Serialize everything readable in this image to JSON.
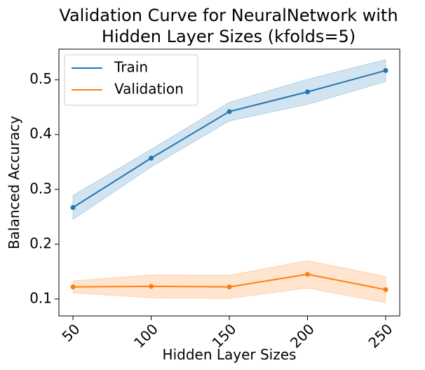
{
  "chart_data": {
    "type": "line",
    "title_lines": [
      "Validation Curve for NeuralNetwork with",
      "Hidden Layer Sizes (kfolds=5)"
    ],
    "xlabel": "Hidden Layer Sizes",
    "ylabel": "Balanced Accuracy",
    "x": [
      50,
      100,
      150,
      200,
      250
    ],
    "x_tick_labels": [
      "50",
      "100",
      "150",
      "200",
      "250"
    ],
    "y_ticks": [
      0.1,
      0.2,
      0.3,
      0.4,
      0.5
    ],
    "y_tick_labels": [
      "0.1",
      "0.2",
      "0.3",
      "0.4",
      "0.5"
    ],
    "xlim": [
      41,
      259
    ],
    "ylim": [
      0.069,
      0.556
    ],
    "legend_position": "upper-left",
    "grid": false,
    "series": [
      {
        "name": "Train",
        "color": "#1f77b4",
        "values": [
          0.267,
          0.357,
          0.442,
          0.478,
          0.517
        ],
        "lower": [
          0.245,
          0.341,
          0.425,
          0.455,
          0.497
        ],
        "upper": [
          0.289,
          0.373,
          0.459,
          0.501,
          0.537
        ]
      },
      {
        "name": "Validation",
        "color": "#ff7f0e",
        "values": [
          0.122,
          0.123,
          0.122,
          0.145,
          0.117
        ],
        "lower": [
          0.111,
          0.102,
          0.101,
          0.12,
          0.093
        ],
        "upper": [
          0.133,
          0.144,
          0.143,
          0.17,
          0.141
        ]
      }
    ]
  }
}
